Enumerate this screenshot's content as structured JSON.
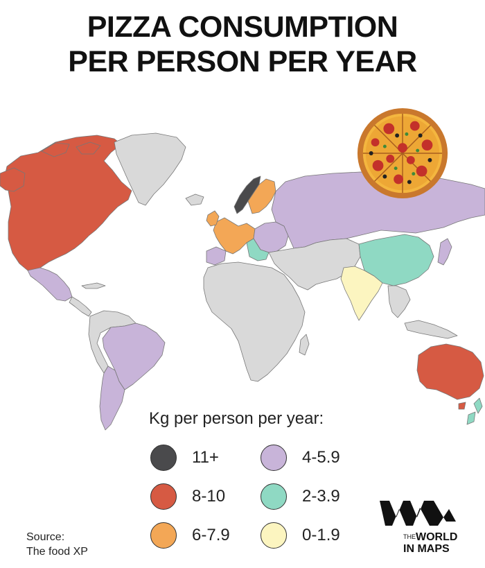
{
  "title": {
    "line1": "PIZZA CONSUMPTION",
    "line2": "PER PERSON PER YEAR"
  },
  "legend": {
    "title": "Kg per person per year:",
    "items": [
      {
        "label": "11+",
        "color": "#4a4a4c"
      },
      {
        "label": "8-10",
        "color": "#d65a43"
      },
      {
        "label": "6-7.9",
        "color": "#f3a756"
      },
      {
        "label": "4-5.9",
        "color": "#c8b4d9"
      },
      {
        "label": "2-3.9",
        "color": "#8fd9c3"
      },
      {
        "label": "0-1.9",
        "color": "#fcf5c0"
      }
    ],
    "no_data_color": "#d9d9d9"
  },
  "source": {
    "line1": "Source:",
    "line2": "The food XP"
  },
  "logo": {
    "the": "THE",
    "line1": "WORLD",
    "line2": "IN MAPS"
  },
  "pizza_icon": "pizza-icon"
}
